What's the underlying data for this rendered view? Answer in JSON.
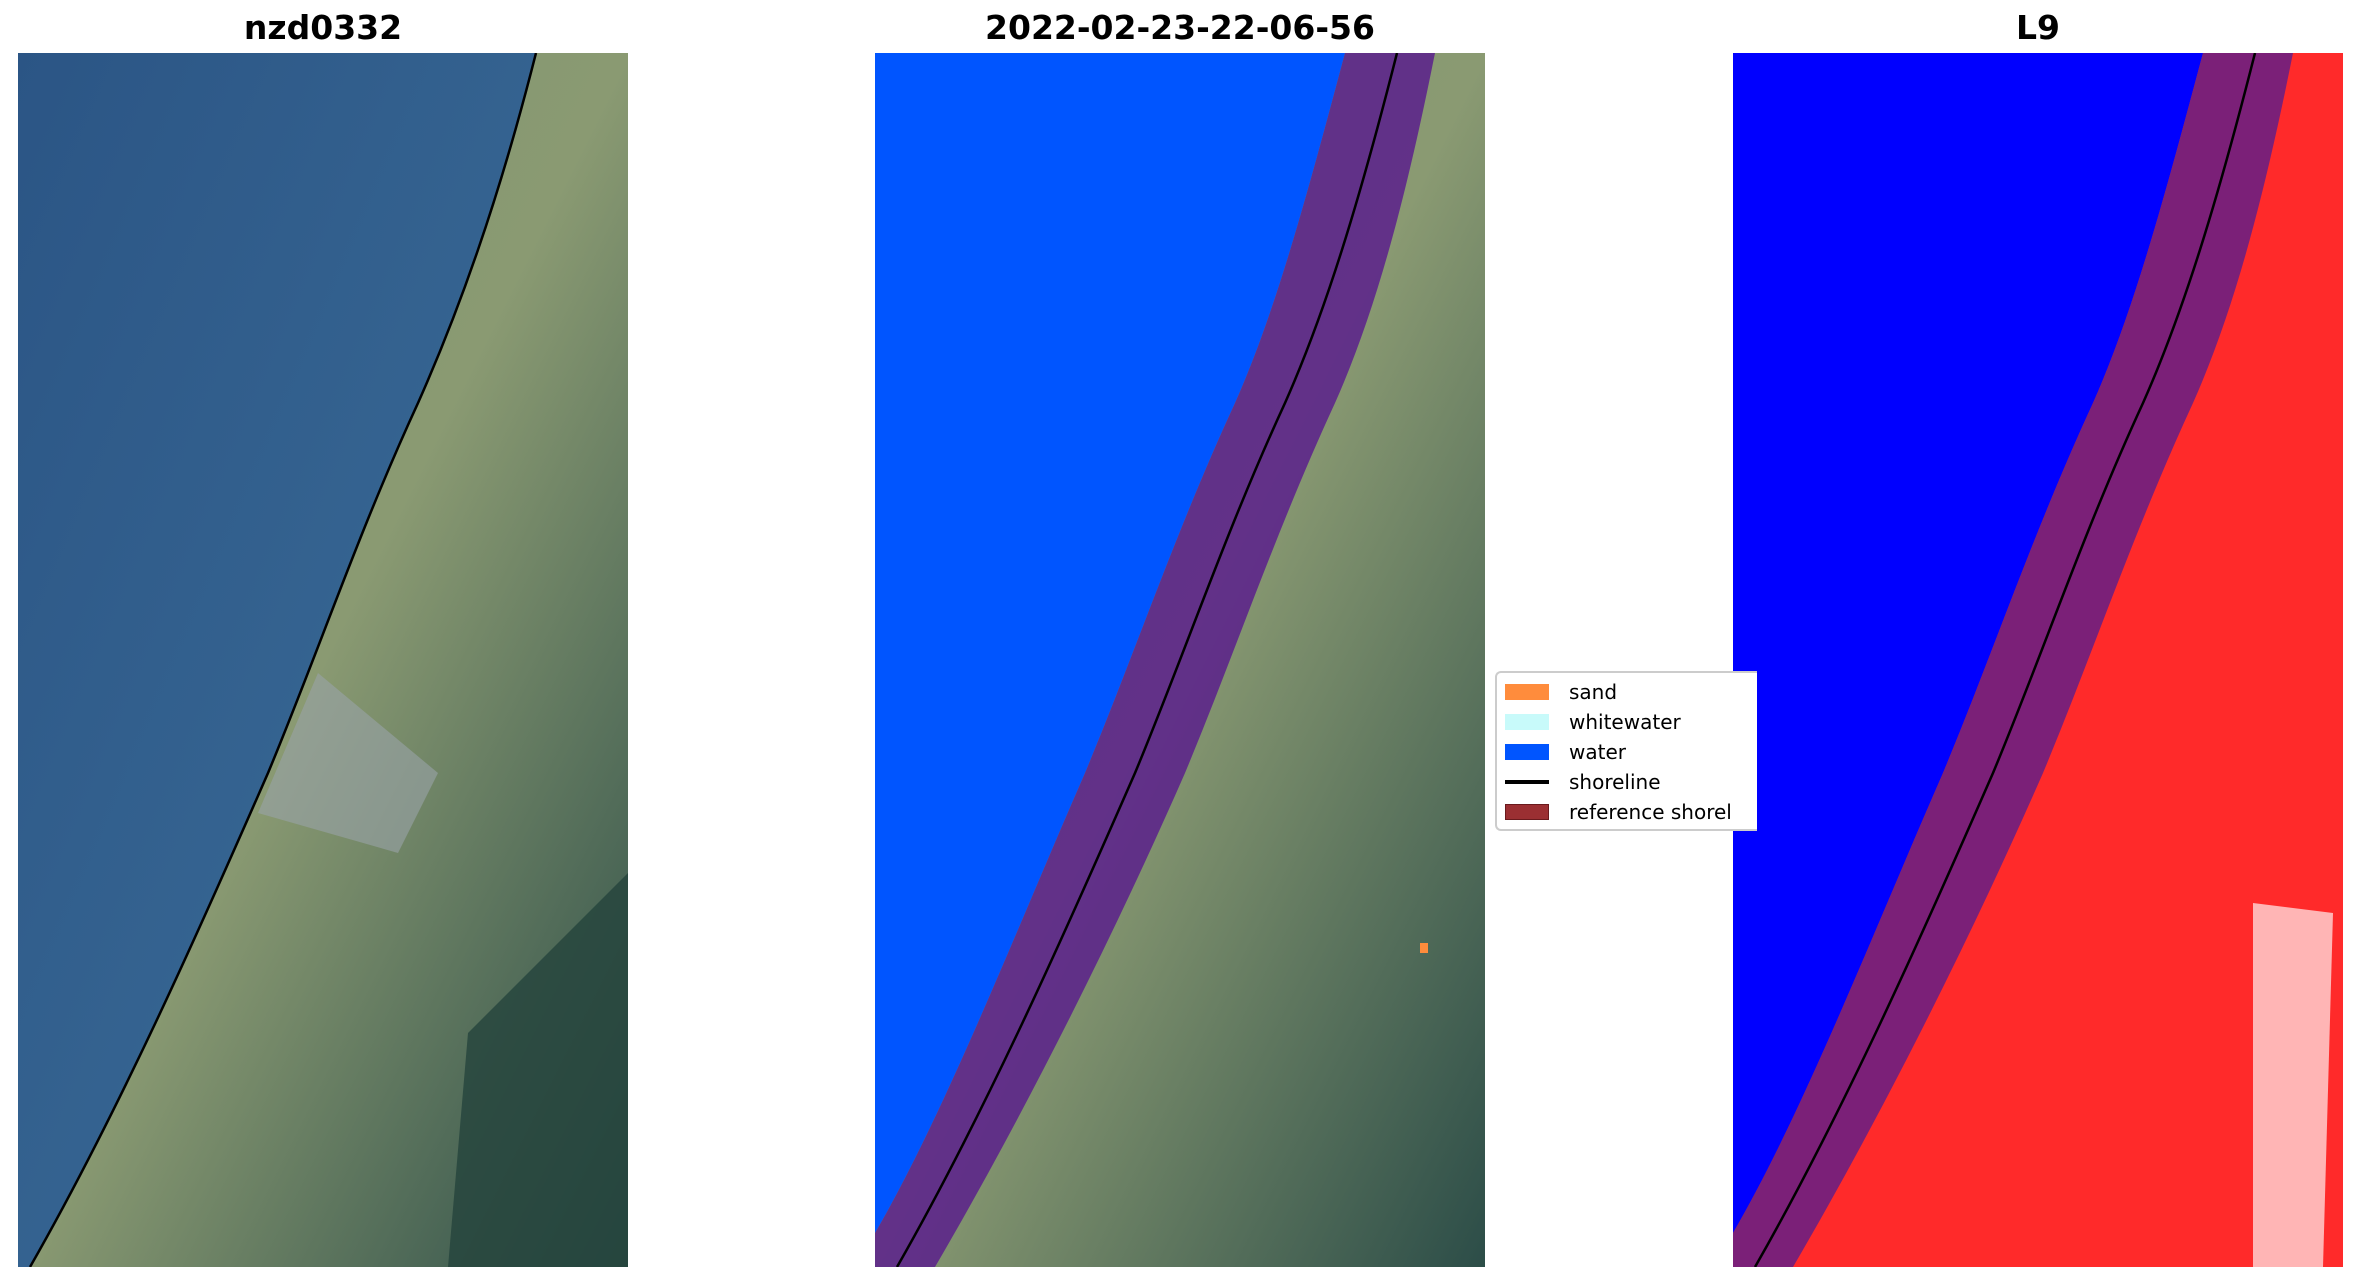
{
  "panels": [
    {
      "title": "nzd0332",
      "image": "rgb-satellite-image"
    },
    {
      "title": "2022-02-23-22-06-56",
      "image": "classified-image"
    },
    {
      "title": "L9",
      "image": "mndwi-index-image"
    }
  ],
  "legend": {
    "items": [
      {
        "label": "sand",
        "color": "#ff8c3c"
      },
      {
        "label": "whitewater",
        "color": "#c8fafa"
      },
      {
        "label": "water",
        "color": "#0055ff"
      },
      {
        "label": "shoreline",
        "color": "#000000"
      },
      {
        "label": "reference shorel",
        "color": "#9b2f32"
      }
    ]
  },
  "colors": {
    "ocean": "#2f5b8a",
    "land": "#6f8a6a",
    "water_class": "#0055ff",
    "buffer": "#5a1e8c",
    "index_water": "#0000ff",
    "index_land": "#ff2a2a"
  }
}
